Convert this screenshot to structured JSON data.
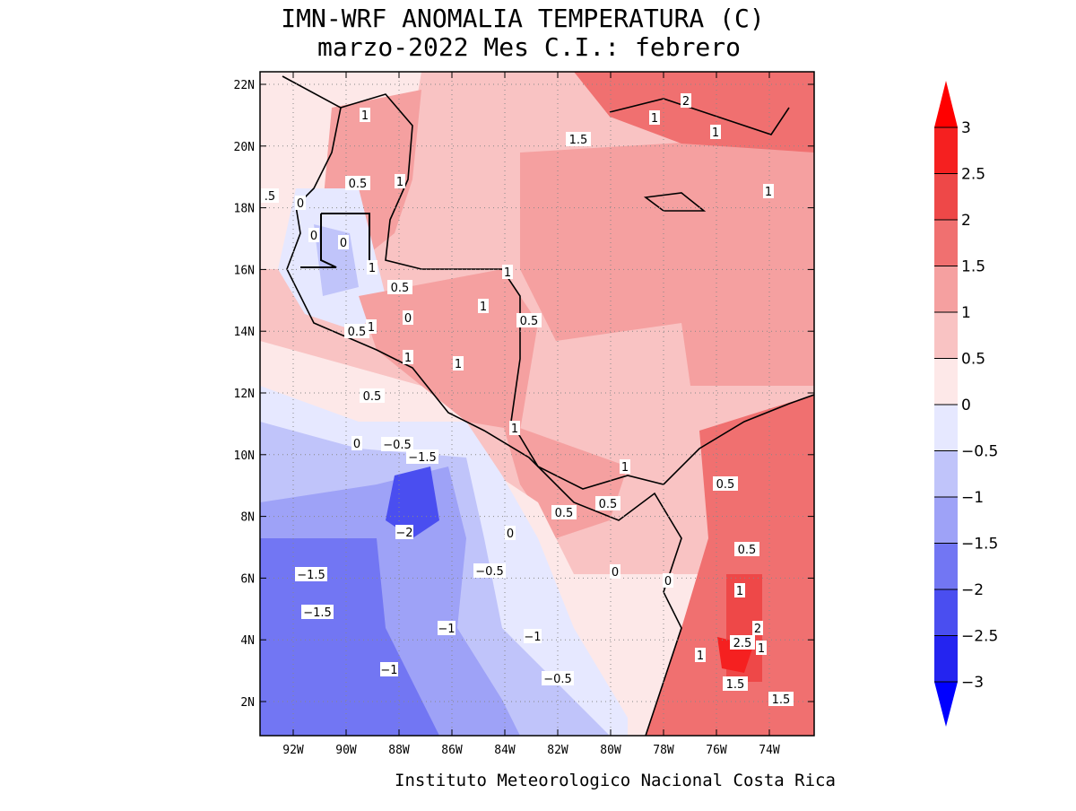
{
  "title": [
    "IMN-WRF  ANOMALIA TEMPERATURA (C)",
    "marzo-2022 Mes C.I.: febrero"
  ],
  "lat_labels": [
    "22N",
    "20N",
    "18N",
    "16N",
    "14N",
    "12N",
    "10N",
    "8N",
    "6N",
    "4N",
    "2N"
  ],
  "lon_labels": [
    "92W",
    "90W",
    "88W",
    "86W",
    "84W",
    "82W",
    "80W",
    "78W",
    "76W",
    "74W"
  ],
  "colorbar": {
    "labels": [
      "3",
      "2.5",
      "2",
      "1.5",
      "1",
      "0.5",
      "0",
      "−0.5",
      "−1",
      "−1.5",
      "−2",
      "−2.5",
      "−3"
    ],
    "colors": [
      "#ff0000",
      "#f52020",
      "#ee4848",
      "#f07070",
      "#f5a0a0",
      "#f9c3c3",
      "#fde8e8",
      "#e6e8ff",
      "#c0c4fa",
      "#9ea2f7",
      "#7276f3",
      "#4a4ef0",
      "#2424f0",
      "#0000ff"
    ]
  },
  "contour_labels": [
    "1",
    "0.5",
    "1",
    "0",
    ".5",
    "0",
    "0",
    "1",
    "0.5",
    "0",
    "0.5",
    "1",
    "1",
    "1",
    "1",
    "0.5",
    "1",
    "0.5",
    "0",
    "−0.5",
    "−1.5",
    "1",
    "1",
    "1",
    "2",
    "1",
    "1.5",
    "1",
    "0.5",
    "0.5",
    "0.5",
    "0.5",
    "−2",
    "0",
    "−0.5",
    "0",
    "0",
    "−1.5",
    "−1.5",
    "−1",
    "−1",
    "−1",
    "−0.5",
    "1",
    "2",
    "2.5",
    "1",
    "1",
    "1.5",
    "1.5"
  ],
  "footer": "Instituto Meteorologico Nacional Costa Rica"
}
